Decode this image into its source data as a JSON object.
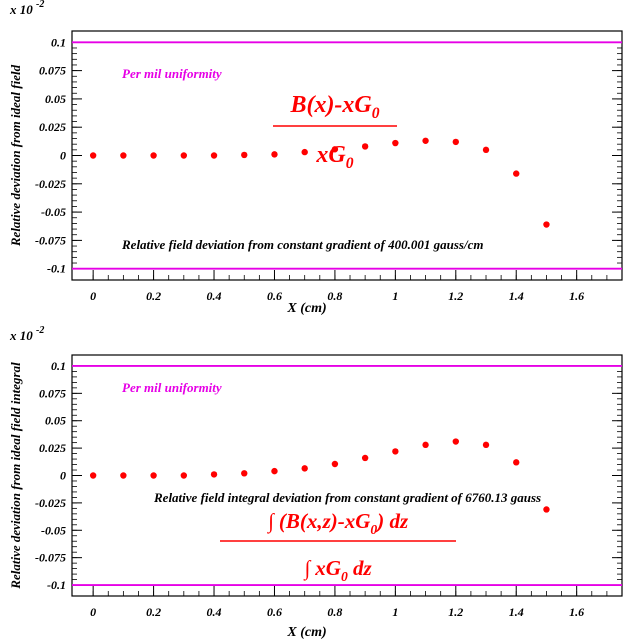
{
  "chart_data": [
    {
      "type": "scatter",
      "exponent_label": "x 10",
      "exponent_power": "-2",
      "ylabel": "Relative deviation from ideal field",
      "xlabel": "X (cm)",
      "xlim": [
        -0.07,
        1.75
      ],
      "ylim": [
        -0.11,
        0.11
      ],
      "x_ticks": [
        "0",
        "0.2",
        "0.4",
        "0.6",
        "0.8",
        "1",
        "1.2",
        "1.4",
        "1.6"
      ],
      "x_tick_values": [
        0,
        0.2,
        0.4,
        0.6,
        0.8,
        1.0,
        1.2,
        1.4,
        1.6
      ],
      "y_ticks": [
        "0.1",
        "0.075",
        "0.05",
        "0.025",
        "0",
        "-0.025",
        "-0.05",
        "-0.075",
        "-0.1"
      ],
      "y_tick_values": [
        0.1,
        0.075,
        0.05,
        0.025,
        0,
        -0.025,
        -0.05,
        -0.075,
        -0.1
      ],
      "limit_lines": [
        0.1,
        -0.1
      ],
      "limit_color": "#e600e6",
      "point_color": "#ff0000",
      "uniformity_label": "Per mil uniformity",
      "formula": {
        "numerator": "B(x)-xG",
        "numerator_sub": "0",
        "denominator": "xG",
        "denominator_sub": "0"
      },
      "annotation": "Relative field deviation from constant gradient of 400.001 gauss/cm",
      "x": [
        0,
        0.1,
        0.2,
        0.3,
        0.4,
        0.5,
        0.6,
        0.7,
        0.8,
        0.9,
        1.0,
        1.1,
        1.2,
        1.3,
        1.4,
        1.5
      ],
      "y": [
        0,
        0,
        0,
        0,
        0,
        0.0005,
        0.001,
        0.003,
        0.0055,
        0.008,
        0.011,
        0.013,
        0.012,
        0.005,
        -0.016,
        -0.061
      ]
    },
    {
      "type": "scatter",
      "exponent_label": "x 10",
      "exponent_power": "-2",
      "ylabel": "Relative deviation from ideal field integral",
      "xlabel": "X (cm)",
      "xlim": [
        -0.07,
        1.75
      ],
      "ylim": [
        -0.11,
        0.11
      ],
      "x_ticks": [
        "0",
        "0.2",
        "0.4",
        "0.6",
        "0.8",
        "1",
        "1.2",
        "1.4",
        "1.6"
      ],
      "x_tick_values": [
        0,
        0.2,
        0.4,
        0.6,
        0.8,
        1.0,
        1.2,
        1.4,
        1.6
      ],
      "y_ticks": [
        "0.1",
        "0.075",
        "0.05",
        "0.025",
        "0",
        "-0.025",
        "-0.05",
        "-0.075",
        "-0.1"
      ],
      "y_tick_values": [
        0.1,
        0.075,
        0.05,
        0.025,
        0,
        -0.025,
        -0.05,
        -0.075,
        -0.1
      ],
      "limit_lines": [
        0.1,
        -0.1
      ],
      "limit_color": "#e600e6",
      "point_color": "#ff0000",
      "uniformity_label": "Per mil uniformity",
      "formula": {
        "numerator": "∫ (B(x,z)-xG",
        "numerator_sub": "0",
        "numerator_tail": ") dz",
        "denominator": "∫ xG",
        "denominator_sub": "0",
        "denominator_tail": " dz"
      },
      "annotation": "Relative field integral deviation from constant gradient of 6760.13 gauss",
      "x": [
        0,
        0.1,
        0.2,
        0.3,
        0.4,
        0.5,
        0.6,
        0.7,
        0.8,
        0.9,
        1.0,
        1.1,
        1.2,
        1.3,
        1.4,
        1.5
      ],
      "y": [
        0,
        0,
        0,
        0,
        0.001,
        0.002,
        0.004,
        0.0065,
        0.0105,
        0.016,
        0.022,
        0.028,
        0.031,
        0.028,
        0.012,
        -0.031
      ]
    }
  ]
}
